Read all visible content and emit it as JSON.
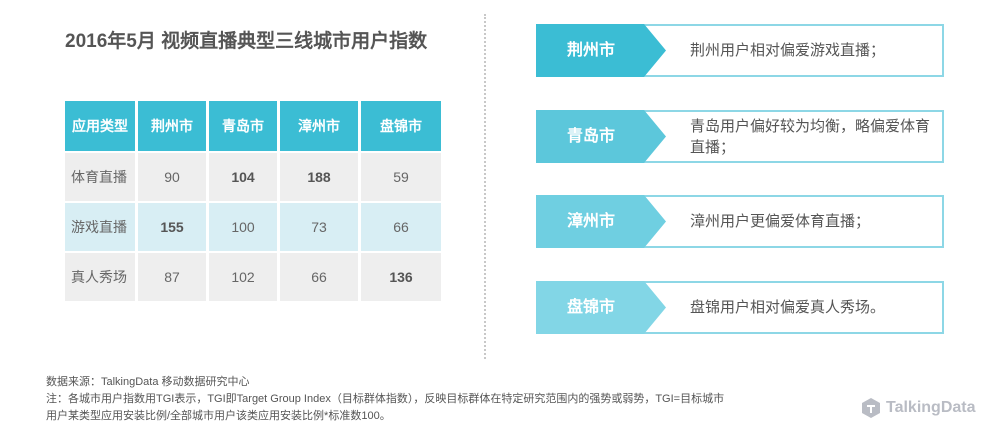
{
  "title": "2016年5月 视频直播典型三线城市用户指数",
  "chart_data": {
    "type": "table",
    "columns": [
      "应用类型",
      "荆州市",
      "青岛市",
      "漳州市",
      "盘锦市"
    ],
    "rows": [
      {
        "label": "体育直播",
        "values": [
          90,
          104,
          188,
          59
        ]
      },
      {
        "label": "游戏直播",
        "values": [
          155,
          100,
          73,
          66
        ]
      },
      {
        "label": "真人秀场",
        "values": [
          87,
          102,
          66,
          136
        ]
      }
    ],
    "highlight_color": "#3bbdd4"
  },
  "cards": [
    {
      "city": "荆州市",
      "text": "荆州用户相对偏爱游戏直播；",
      "color": "#3bbdd4"
    },
    {
      "city": "青岛市",
      "text": "青岛用户偏好较为均衡，略偏爱体育直播；",
      "color": "#5cc7db"
    },
    {
      "city": "漳州市",
      "text": "漳州用户更偏爱体育直播；",
      "color": "#6fcfe1"
    },
    {
      "city": "盘锦市",
      "text": "盘锦用户相对偏爱真人秀场。",
      "color": "#82d6e6"
    }
  ],
  "notes": {
    "source": "数据来源：TalkingData 移动数据研究中心",
    "note1": "注：各城市用户指数用TGI表示，TGI即Target Group Index（目标群体指数），反映目标群体在特定研究范围内的强势或弱势，TGI=目标城市",
    "note2": "用户某类型应用安装比例/全部城市用户该类应用安装比例*标准数100。"
  },
  "brand": {
    "name": "TalkingData",
    "icon": "talkingdata-logo-icon"
  }
}
